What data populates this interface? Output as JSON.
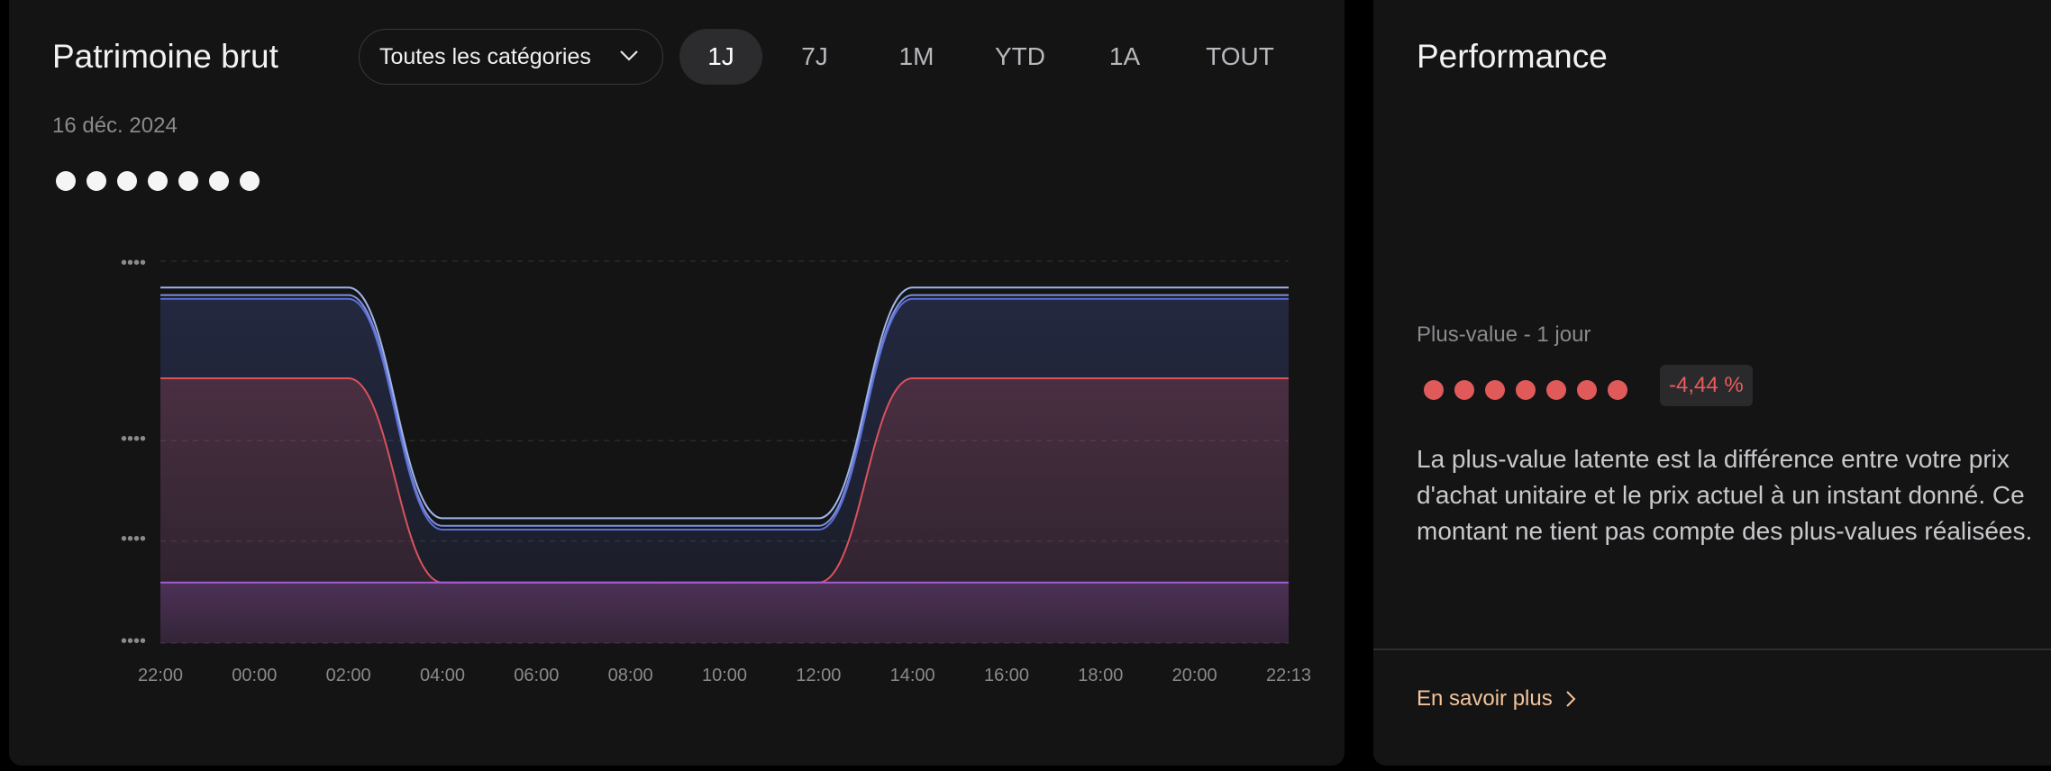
{
  "left": {
    "title": "Patrimoine brut",
    "category_select": {
      "value": "Toutes les catégories",
      "icon": "chevron-down-icon"
    },
    "ranges": [
      {
        "label": "1J",
        "active": true
      },
      {
        "label": "7J",
        "active": false
      },
      {
        "label": "1M",
        "active": false
      },
      {
        "label": "YTD",
        "active": false
      },
      {
        "label": "1A",
        "active": false
      },
      {
        "label": "TOUT",
        "active": false
      }
    ],
    "date": "16 déc. 2024",
    "value_masked": "●●●●●●●"
  },
  "chart_data": {
    "type": "area",
    "x": [
      "22:00",
      "00:00",
      "02:00",
      "04:00",
      "06:00",
      "08:00",
      "10:00",
      "12:00",
      "14:00",
      "16:00",
      "18:00",
      "20:00",
      "22:13"
    ],
    "y_tick_labels": [
      "••••",
      "••••",
      "••••",
      "••••"
    ],
    "series": [
      {
        "color": "#9fb4e8",
        "values": [
          0.94,
          0.94,
          0.94,
          0.33,
          0.33,
          0.33,
          0.33,
          0.33,
          0.94,
          0.94,
          0.94,
          0.94,
          0.94
        ]
      },
      {
        "color": "#7f8fe0",
        "values": [
          0.92,
          0.92,
          0.92,
          0.31,
          0.31,
          0.31,
          0.31,
          0.31,
          0.92,
          0.92,
          0.92,
          0.92,
          0.92
        ]
      },
      {
        "color": "#5a6fd8",
        "values": [
          0.91,
          0.91,
          0.91,
          0.3,
          0.3,
          0.3,
          0.3,
          0.3,
          0.91,
          0.91,
          0.91,
          0.91,
          0.91
        ]
      },
      {
        "color": "#d9535d",
        "values": [
          0.7,
          0.7,
          0.7,
          0.16,
          0.16,
          0.16,
          0.16,
          0.16,
          0.7,
          0.7,
          0.7,
          0.7,
          0.7
        ]
      },
      {
        "color": "#a35ad0",
        "values": [
          0.16,
          0.16,
          0.16,
          0.16,
          0.16,
          0.16,
          0.16,
          0.16,
          0.16,
          0.16,
          0.16,
          0.16,
          0.16
        ]
      }
    ],
    "grid": true
  },
  "right": {
    "title": "Performance",
    "label": "Plus-value - 1 jour",
    "value_masked": "●●●●●●●",
    "badge": "-4,44 %",
    "description": "La plus-value latente est la différence entre votre prix d'achat unitaire et le prix actuel à un instant donné. Ce montant ne tient pas compte des plus-values réalisées.",
    "learn_more": "En savoir plus"
  }
}
